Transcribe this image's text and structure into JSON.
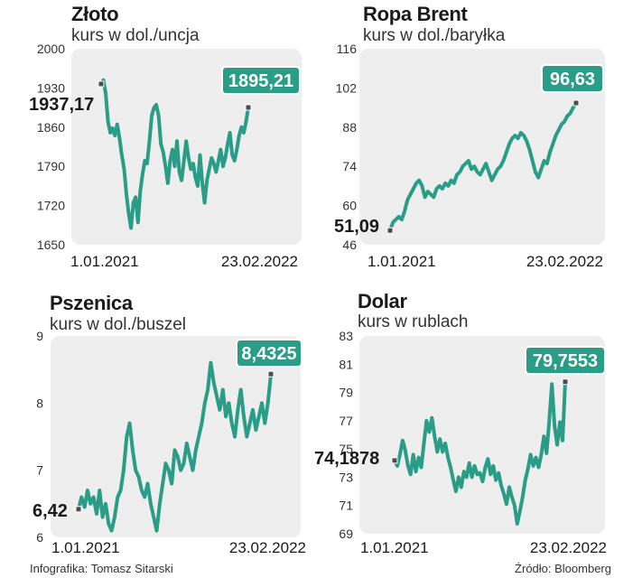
{
  "colors": {
    "line": "#2a9d86",
    "panel_bg": "#eeeeee",
    "callout_bg": "#2a9d86",
    "callout_text": "#ffffff",
    "marker": "#4d4d4d"
  },
  "footer": {
    "credit": "Infografika: Tomasz Sitarski",
    "source": "Źródło: Bloomberg"
  },
  "chart_data": [
    {
      "type": "line",
      "title": "Złoto",
      "subtitle": "kurs w dol./uncja",
      "ylim": [
        1650,
        2000
      ],
      "yticks": [
        "2000",
        "1930",
        "1860",
        "1790",
        "1720",
        "1650"
      ],
      "xticks": [
        "1.01.2021",
        "23.02.2022"
      ],
      "start_label": "1937,17",
      "end_label": "1895,21",
      "start_value": 1937.17,
      "end_value": 1895.21,
      "grid": false,
      "series": [
        {
          "values": [
            1937,
            1944,
            1920,
            1870,
            1850,
            1858,
            1845,
            1865,
            1840,
            1810,
            1785,
            1740,
            1705,
            1680,
            1725,
            1735,
            1690,
            1745,
            1775,
            1800,
            1795,
            1835,
            1880,
            1895,
            1900,
            1880,
            1830,
            1815,
            1790,
            1760,
            1800,
            1820,
            1790,
            1835,
            1780,
            1765,
            1800,
            1835,
            1805,
            1785,
            1795,
            1770,
            1755,
            1810,
            1760,
            1725,
            1765,
            1785,
            1805,
            1795,
            1780,
            1800,
            1820,
            1790,
            1805,
            1830,
            1850,
            1810,
            1800,
            1820,
            1845,
            1860,
            1850,
            1870,
            1895
          ]
        }
      ]
    },
    {
      "type": "line",
      "title": "Ropa Brent",
      "subtitle": "kurs w dol./baryłka",
      "ylim": [
        46,
        116
      ],
      "yticks": [
        "116",
        "102",
        "88",
        "74",
        "60",
        "46"
      ],
      "xticks": [
        "1.01.2021",
        "23.02.2022"
      ],
      "start_label": "51,09",
      "end_label": "96,63",
      "start_value": 51.09,
      "end_value": 96.63,
      "grid": false,
      "series": [
        {
          "values": [
            51,
            54,
            55,
            56,
            55,
            58,
            62,
            64,
            66,
            68,
            69,
            67,
            63,
            65,
            64,
            63,
            66,
            67,
            66,
            68,
            67,
            69,
            68,
            71,
            72,
            74,
            75,
            76,
            73,
            74,
            72,
            71,
            73,
            75,
            72,
            69,
            71,
            73,
            74,
            76,
            79,
            82,
            84,
            85,
            84,
            86,
            85,
            83,
            80,
            76,
            72,
            70,
            73,
            76,
            75,
            79,
            82,
            85,
            87,
            89,
            90,
            92,
            93,
            95,
            96.6
          ]
        }
      ]
    },
    {
      "type": "line",
      "title": "Pszenica",
      "subtitle": "kurs w dol./buszel",
      "ylim": [
        6,
        9
      ],
      "yticks": [
        "9",
        "8",
        "7",
        "6"
      ],
      "xticks": [
        "1.01.2021",
        "23.02.2022"
      ],
      "start_label": "6,42",
      "end_label": "8,4325",
      "start_value": 6.42,
      "end_value": 8.4325,
      "grid": false,
      "series": [
        {
          "values": [
            6.42,
            6.6,
            6.45,
            6.7,
            6.5,
            6.6,
            6.35,
            6.7,
            6.3,
            6.5,
            6.2,
            6.1,
            6.3,
            6.6,
            6.7,
            7.0,
            7.5,
            7.7,
            7.3,
            7.0,
            6.9,
            6.7,
            6.6,
            6.8,
            6.5,
            6.3,
            6.1,
            6.5,
            6.8,
            7.1,
            7.0,
            6.8,
            7.3,
            7.2,
            7.0,
            7.1,
            7.4,
            7.2,
            7.0,
            7.3,
            7.5,
            7.7,
            8.0,
            8.2,
            8.6,
            8.3,
            8.1,
            7.9,
            8.2,
            7.8,
            8.0,
            7.7,
            7.5,
            7.9,
            8.2,
            7.8,
            7.5,
            7.7,
            7.9,
            7.6,
            7.8,
            8.0,
            7.7,
            8.0,
            8.43
          ]
        }
      ]
    },
    {
      "type": "line",
      "title": "Dolar",
      "subtitle": "kurs w rublach",
      "ylim": [
        69,
        83
      ],
      "yticks": [
        "83",
        "81",
        "79",
        "77",
        "75",
        "73",
        "71",
        "69"
      ],
      "xticks": [
        "1.01.2021",
        "23.02.2022"
      ],
      "start_label": "74,1878",
      "end_label": "79,7553",
      "start_value": 74.1878,
      "end_value": 79.7553,
      "grid": false,
      "series": [
        {
          "values": [
            74.19,
            73.8,
            74.6,
            75.6,
            74.9,
            73.8,
            73.2,
            74.6,
            73.4,
            74.4,
            73.7,
            75.4,
            77.0,
            76.2,
            77.2,
            75.9,
            74.8,
            75.7,
            74.8,
            75.4,
            74.4,
            73.7,
            72.8,
            72.0,
            73.0,
            72.3,
            73.4,
            73.0,
            74.0,
            73.0,
            73.8,
            73.2,
            73.3,
            72.7,
            73.7,
            74.3,
            73.2,
            73.8,
            72.8,
            73.3,
            72.4,
            71.8,
            71.1,
            72.3,
            71.6,
            71.0,
            69.7,
            70.6,
            71.6,
            72.8,
            73.6,
            74.6,
            73.8,
            74.4,
            73.7,
            74.6,
            75.9,
            74.7,
            77.0,
            79.6,
            76.6,
            75.3,
            76.9,
            75.6,
            79.76
          ]
        }
      ]
    }
  ]
}
